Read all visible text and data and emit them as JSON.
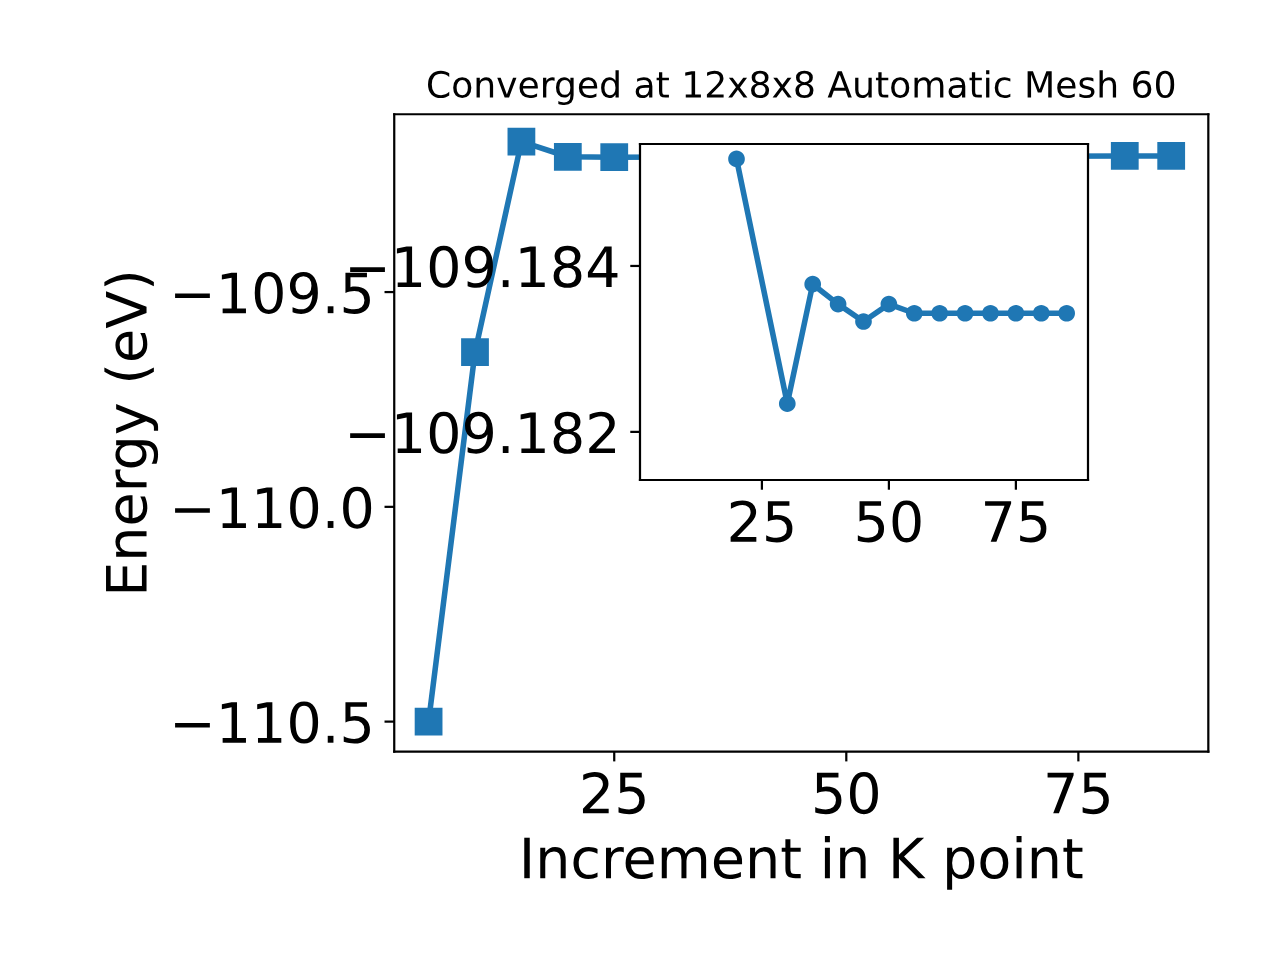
{
  "chart_data": [
    {
      "type": "line",
      "title": "Converged at 12x8x8 Automatic Mesh 60",
      "xlabel": "Increment in K point",
      "ylabel": "Energy (eV)",
      "marker": "square",
      "line_style": "solid",
      "grid": false,
      "x": [
        5,
        10,
        15,
        20,
        25,
        30,
        35,
        40,
        45,
        50,
        55,
        60,
        65,
        70,
        75,
        80,
        85
      ],
      "series": [
        {
          "color": "#1f77b4",
          "values": [
            -110.5,
            -109.64,
            -109.15,
            -109.185,
            -109.186,
            null,
            null,
            null,
            null,
            null,
            null,
            null,
            null,
            null,
            null,
            -109.183,
            -109.183
          ]
        }
      ],
      "xlim": [
        1.3,
        89.0
      ],
      "xticks": [
        25,
        50,
        75
      ],
      "ylim": [
        -110.57,
        -109.086
      ],
      "yticks": [
        {
          "value": -110.5,
          "label": "−110.5"
        },
        {
          "value": -110.0,
          "label": "−110.0"
        },
        {
          "value": -109.5,
          "label": "−109.5"
        }
      ]
    },
    {
      "type": "line",
      "marker": "circle",
      "line_style": "solid",
      "grid": false,
      "x": [
        20,
        25,
        30,
        35,
        40,
        45,
        50,
        55,
        60,
        65,
        70,
        75,
        80,
        85
      ],
      "series": [
        {
          "color": "#1f77b4",
          "values": [
            -109.18529,
            null,
            -109.18234,
            -109.18378,
            -109.18354,
            -109.18333,
            -109.18354,
            -109.18343,
            -109.18343,
            -109.18343,
            -109.18343,
            -109.18343,
            -109.18343,
            -109.18343
          ]
        }
      ],
      "xlim": [
        1.0,
        89.2
      ],
      "xticks": [
        25,
        50,
        75
      ],
      "ylim": [
        -109.18142,
        -109.18547
      ],
      "yticks": [
        {
          "value": -109.184,
          "label": "−109.184"
        },
        {
          "value": -109.182,
          "label": "−109.182"
        }
      ]
    }
  ]
}
